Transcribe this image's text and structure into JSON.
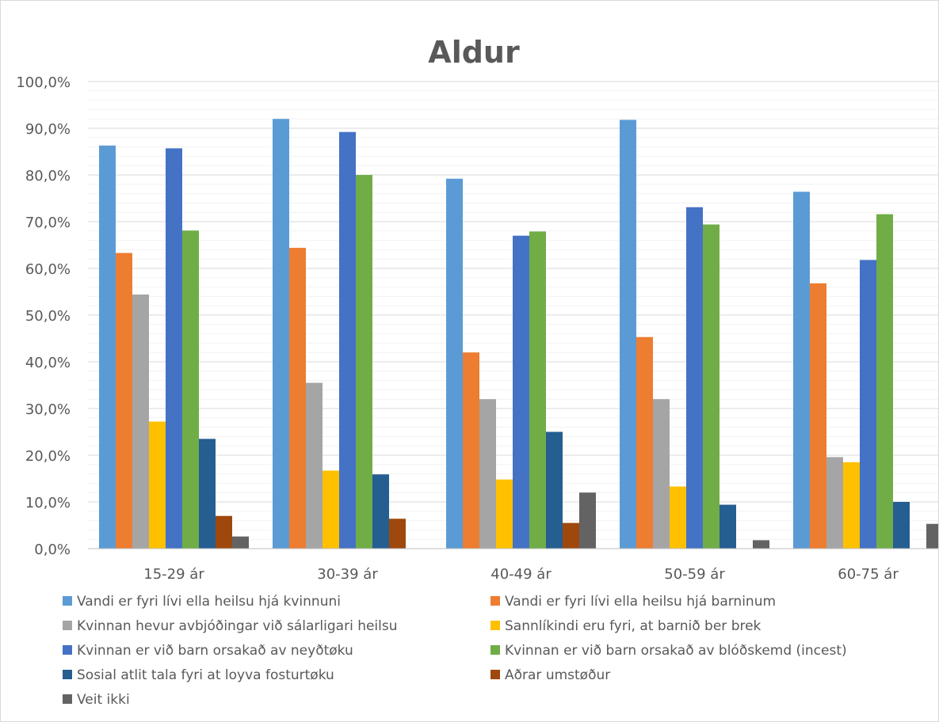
{
  "chart_data": {
    "type": "bar",
    "title": "Aldur",
    "xlabel": "",
    "ylabel": "",
    "ylim": [
      0,
      100
    ],
    "y_ticks": [
      "0,0%",
      "10,0%",
      "20,0%",
      "30,0%",
      "40,0%",
      "50,0%",
      "60,0%",
      "70,0%",
      "80,0%",
      "90,0%",
      "100,0%"
    ],
    "grid": true,
    "legend_position": "bottom",
    "categories": [
      "15-29 ár",
      "30-39 ár",
      "40-49 ár",
      "50-59 ár",
      "60-75 ár"
    ],
    "series": [
      {
        "name": "Vandi er fyri lívi ella heilsu hjá kvinnuni",
        "color": "#5B9BD5",
        "values": [
          86.3,
          92.0,
          79.2,
          91.8,
          76.4
        ]
      },
      {
        "name": "Vandi er fyri lívi ella heilsu hjá barninum",
        "color": "#ED7D31",
        "values": [
          63.3,
          64.4,
          42.0,
          45.3,
          56.8
        ]
      },
      {
        "name": "Kvinnan hevur avbjóðingar við sálarligari heilsu",
        "color": "#A5A5A5",
        "values": [
          54.4,
          35.5,
          32.0,
          32.0,
          19.6
        ]
      },
      {
        "name": "Sannlíkindi eru fyri, at barnið ber brek",
        "color": "#FFC000",
        "values": [
          27.2,
          16.7,
          14.8,
          13.3,
          18.5
        ]
      },
      {
        "name": "Kvinnan er við barn orsakað av neyðtøku",
        "color": "#4472C4",
        "values": [
          85.7,
          89.2,
          67.0,
          73.1,
          61.8
        ]
      },
      {
        "name": "Kvinnan er við barn orsakað av blóðskemd (incest)",
        "color": "#70AD47",
        "values": [
          68.1,
          80.0,
          67.9,
          69.4,
          71.6
        ]
      },
      {
        "name": "Sosial atlit tala fyri at loyva fosturtøku",
        "color": "#255E91",
        "values": [
          23.5,
          15.9,
          25.0,
          9.4,
          10.0
        ]
      },
      {
        "name": "Aðrar umstøður",
        "color": "#9E480E",
        "values": [
          7.0,
          6.4,
          5.5,
          null,
          null
        ]
      },
      {
        "name": "Veit ikki",
        "color": "#636363",
        "values": [
          2.6,
          null,
          12.0,
          1.8,
          5.3
        ]
      }
    ]
  }
}
